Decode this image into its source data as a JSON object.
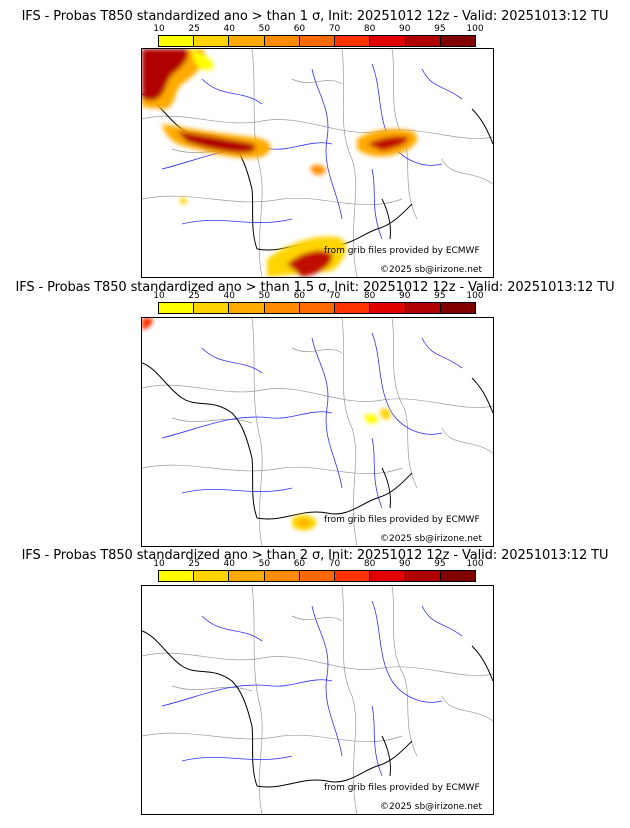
{
  "colorbar": {
    "ticks": [
      "10",
      "25",
      "40",
      "50",
      "60",
      "70",
      "80",
      "90",
      "95",
      "100"
    ],
    "colors": [
      "#ffff00",
      "#ffd400",
      "#ffaa00",
      "#ff8c00",
      "#ff6a00",
      "#ff3300",
      "#e00000",
      "#b00000",
      "#800000"
    ]
  },
  "panels": [
    {
      "title": "IFS - Probas T850  standardized ano > than 1 σ, Init: 20251012 12z - Valid: 20251013:12 TU",
      "credit_source": "from grib files provided by ECMWF",
      "credit_copyright": "©2025 sb@irizone.net"
    },
    {
      "title": "IFS - Probas T850  standardized ano > than 1.5 σ, Init: 20251012 12z - Valid: 20251013:12 TU",
      "credit_source": "from grib files provided by ECMWF",
      "credit_copyright": "©2025 sb@irizone.net"
    },
    {
      "title": "IFS - Probas T850  standardized ano > than 2 σ, Init: 20251012 12z - Valid: 20251013:12 TU",
      "credit_source": "from grib files provided by ECMWF",
      "credit_copyright": "©2025 sb@irizone.net"
    }
  ]
}
